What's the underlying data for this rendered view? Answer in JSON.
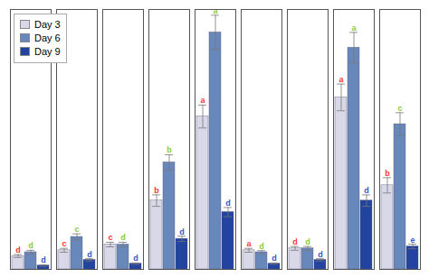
{
  "chart_data": {
    "type": "bar",
    "categories": [
      null,
      null,
      null,
      null,
      null,
      null,
      null,
      null,
      null
    ],
    "series": [
      {
        "name": "Day 3",
        "color": "#d8d8e8",
        "values": [
          3.5,
          5.0,
          6.5,
          18.0,
          40.0,
          5.0,
          5.5,
          45.0,
          22.0
        ],
        "errors": [
          0.4,
          0.5,
          0.6,
          1.5,
          3.0,
          0.5,
          0.5,
          3.5,
          2.0
        ],
        "letters": [
          "d",
          "c",
          "c",
          "b",
          "a",
          "a",
          "d",
          "a",
          "b"
        ],
        "letter_color": "#ff3333"
      },
      {
        "name": "Day 6",
        "color": "#6888bb",
        "values": [
          4.5,
          8.5,
          6.5,
          28.0,
          62.0,
          4.5,
          5.5,
          58.0,
          38.0
        ],
        "errors": [
          0.5,
          0.8,
          0.6,
          2.0,
          4.5,
          0.4,
          0.5,
          4.0,
          3.0
        ],
        "letters": [
          "d",
          "c",
          "d",
          "b",
          "a",
          "d",
          "d",
          "a",
          "c"
        ],
        "letter_color": "#88cc33"
      },
      {
        "name": "Day 9",
        "color": "#2244a0",
        "values": [
          1.0,
          2.5,
          1.5,
          8.0,
          15.0,
          1.5,
          2.5,
          18.0,
          6.0
        ],
        "errors": [
          0.2,
          0.3,
          0.2,
          0.7,
          1.2,
          0.2,
          0.3,
          1.5,
          0.6
        ],
        "letters": [
          "d",
          "d",
          "d",
          "d",
          "d",
          "d",
          "d",
          "d",
          "e"
        ],
        "letter_color": "#3355cc"
      }
    ],
    "ylim": [
      0,
      68
    ],
    "yticks": [],
    "tick_labels": false,
    "grid": false,
    "legend": "upper left"
  }
}
